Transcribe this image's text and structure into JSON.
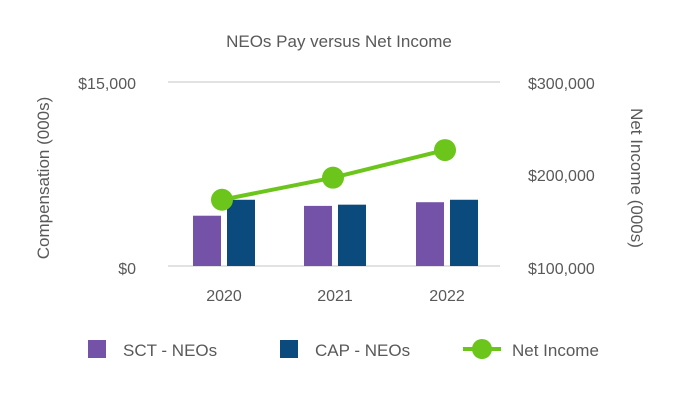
{
  "chart_data": {
    "type": "bar",
    "title": "NEOs Pay versus Net Income",
    "categories": [
      "2020",
      "2021",
      "2022"
    ],
    "series": [
      {
        "name": "SCT - NEOs",
        "kind": "bar",
        "axis": "left",
        "color": "#7452a8",
        "values": [
          4100,
          4900,
          5200
        ]
      },
      {
        "name": "CAP - NEOs",
        "kind": "bar",
        "axis": "left",
        "color": "#0b4a7c",
        "values": [
          5400,
          5000,
          5400
        ]
      },
      {
        "name": "Net Income",
        "kind": "line",
        "axis": "right",
        "color": "#6cc51a",
        "values": [
          172000,
          196000,
          226000
        ]
      }
    ],
    "ylabel_left": "Compensation (000s)",
    "ylabel_right": "Net Income (000s)",
    "ylim_left": [
      0,
      15000
    ],
    "ylim_right": [
      100000,
      300000
    ],
    "yticks_left": [
      "$0",
      "$15,000"
    ],
    "yticks_right": [
      "$100,000",
      "$200,000",
      "$300,000"
    ],
    "grid": true,
    "legend_position": "bottom"
  }
}
